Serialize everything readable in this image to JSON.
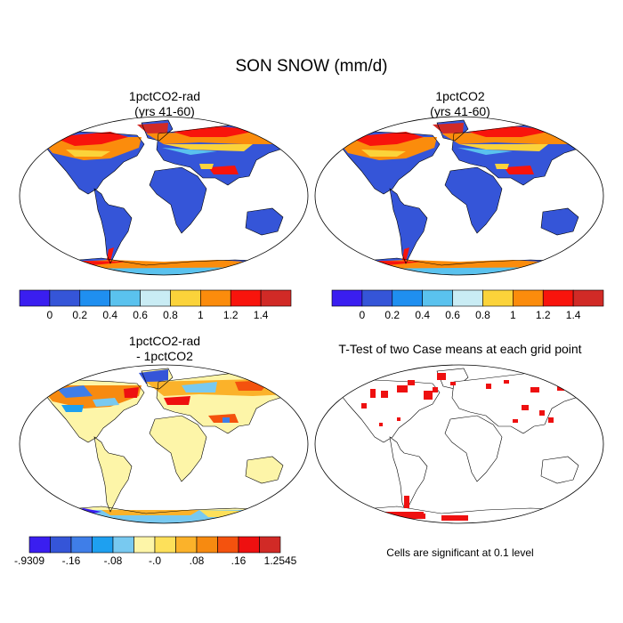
{
  "figure_title": "SON SNOW (mm/d)",
  "panels": [
    {
      "id": "p1",
      "title": "1pctCO2-rad\n(yrs 41-60)",
      "kind": "field"
    },
    {
      "id": "p2",
      "title": "1pctCO2\n(yrs 41-60)",
      "kind": "field"
    },
    {
      "id": "p3",
      "title": "1pctCO2-rad\n- 1pctCO2",
      "kind": "difference"
    },
    {
      "id": "p4",
      "title": "T-Test of two Case means at each grid point",
      "kind": "significance"
    }
  ],
  "colorbar_main": {
    "colors": [
      "#3a1ef0",
      "#3555d8",
      "#1f8ff0",
      "#5ac2ee",
      "#c9ecf4",
      "#fbd33a",
      "#fb8c0c",
      "#f8140c",
      "#d12a26"
    ],
    "labels": [
      "0",
      "0.2",
      "0.4",
      "0.6",
      "0.8",
      "1",
      "1.2",
      "1.4"
    ]
  },
  "colorbar_diff": {
    "colors": [
      "#3a1ef0",
      "#3555d8",
      "#3f7ee8",
      "#1ea0f0",
      "#78c9f0",
      "#fdf5a8",
      "#fde05a",
      "#fbb22a",
      "#f78a10",
      "#f4520e",
      "#ee1010",
      "#d12a26"
    ],
    "labels": [
      "-.9309",
      "-.16",
      "-.08",
      "-.0",
      ".08",
      ".16",
      "1.2545"
    ]
  },
  "significance_note": "Cells are significant at 0.1 level",
  "colors": {
    "ocean": "#ffffff",
    "land_base": "#3555d8",
    "diff_land": "#fdf5a8",
    "significant": "#ee1010"
  }
}
